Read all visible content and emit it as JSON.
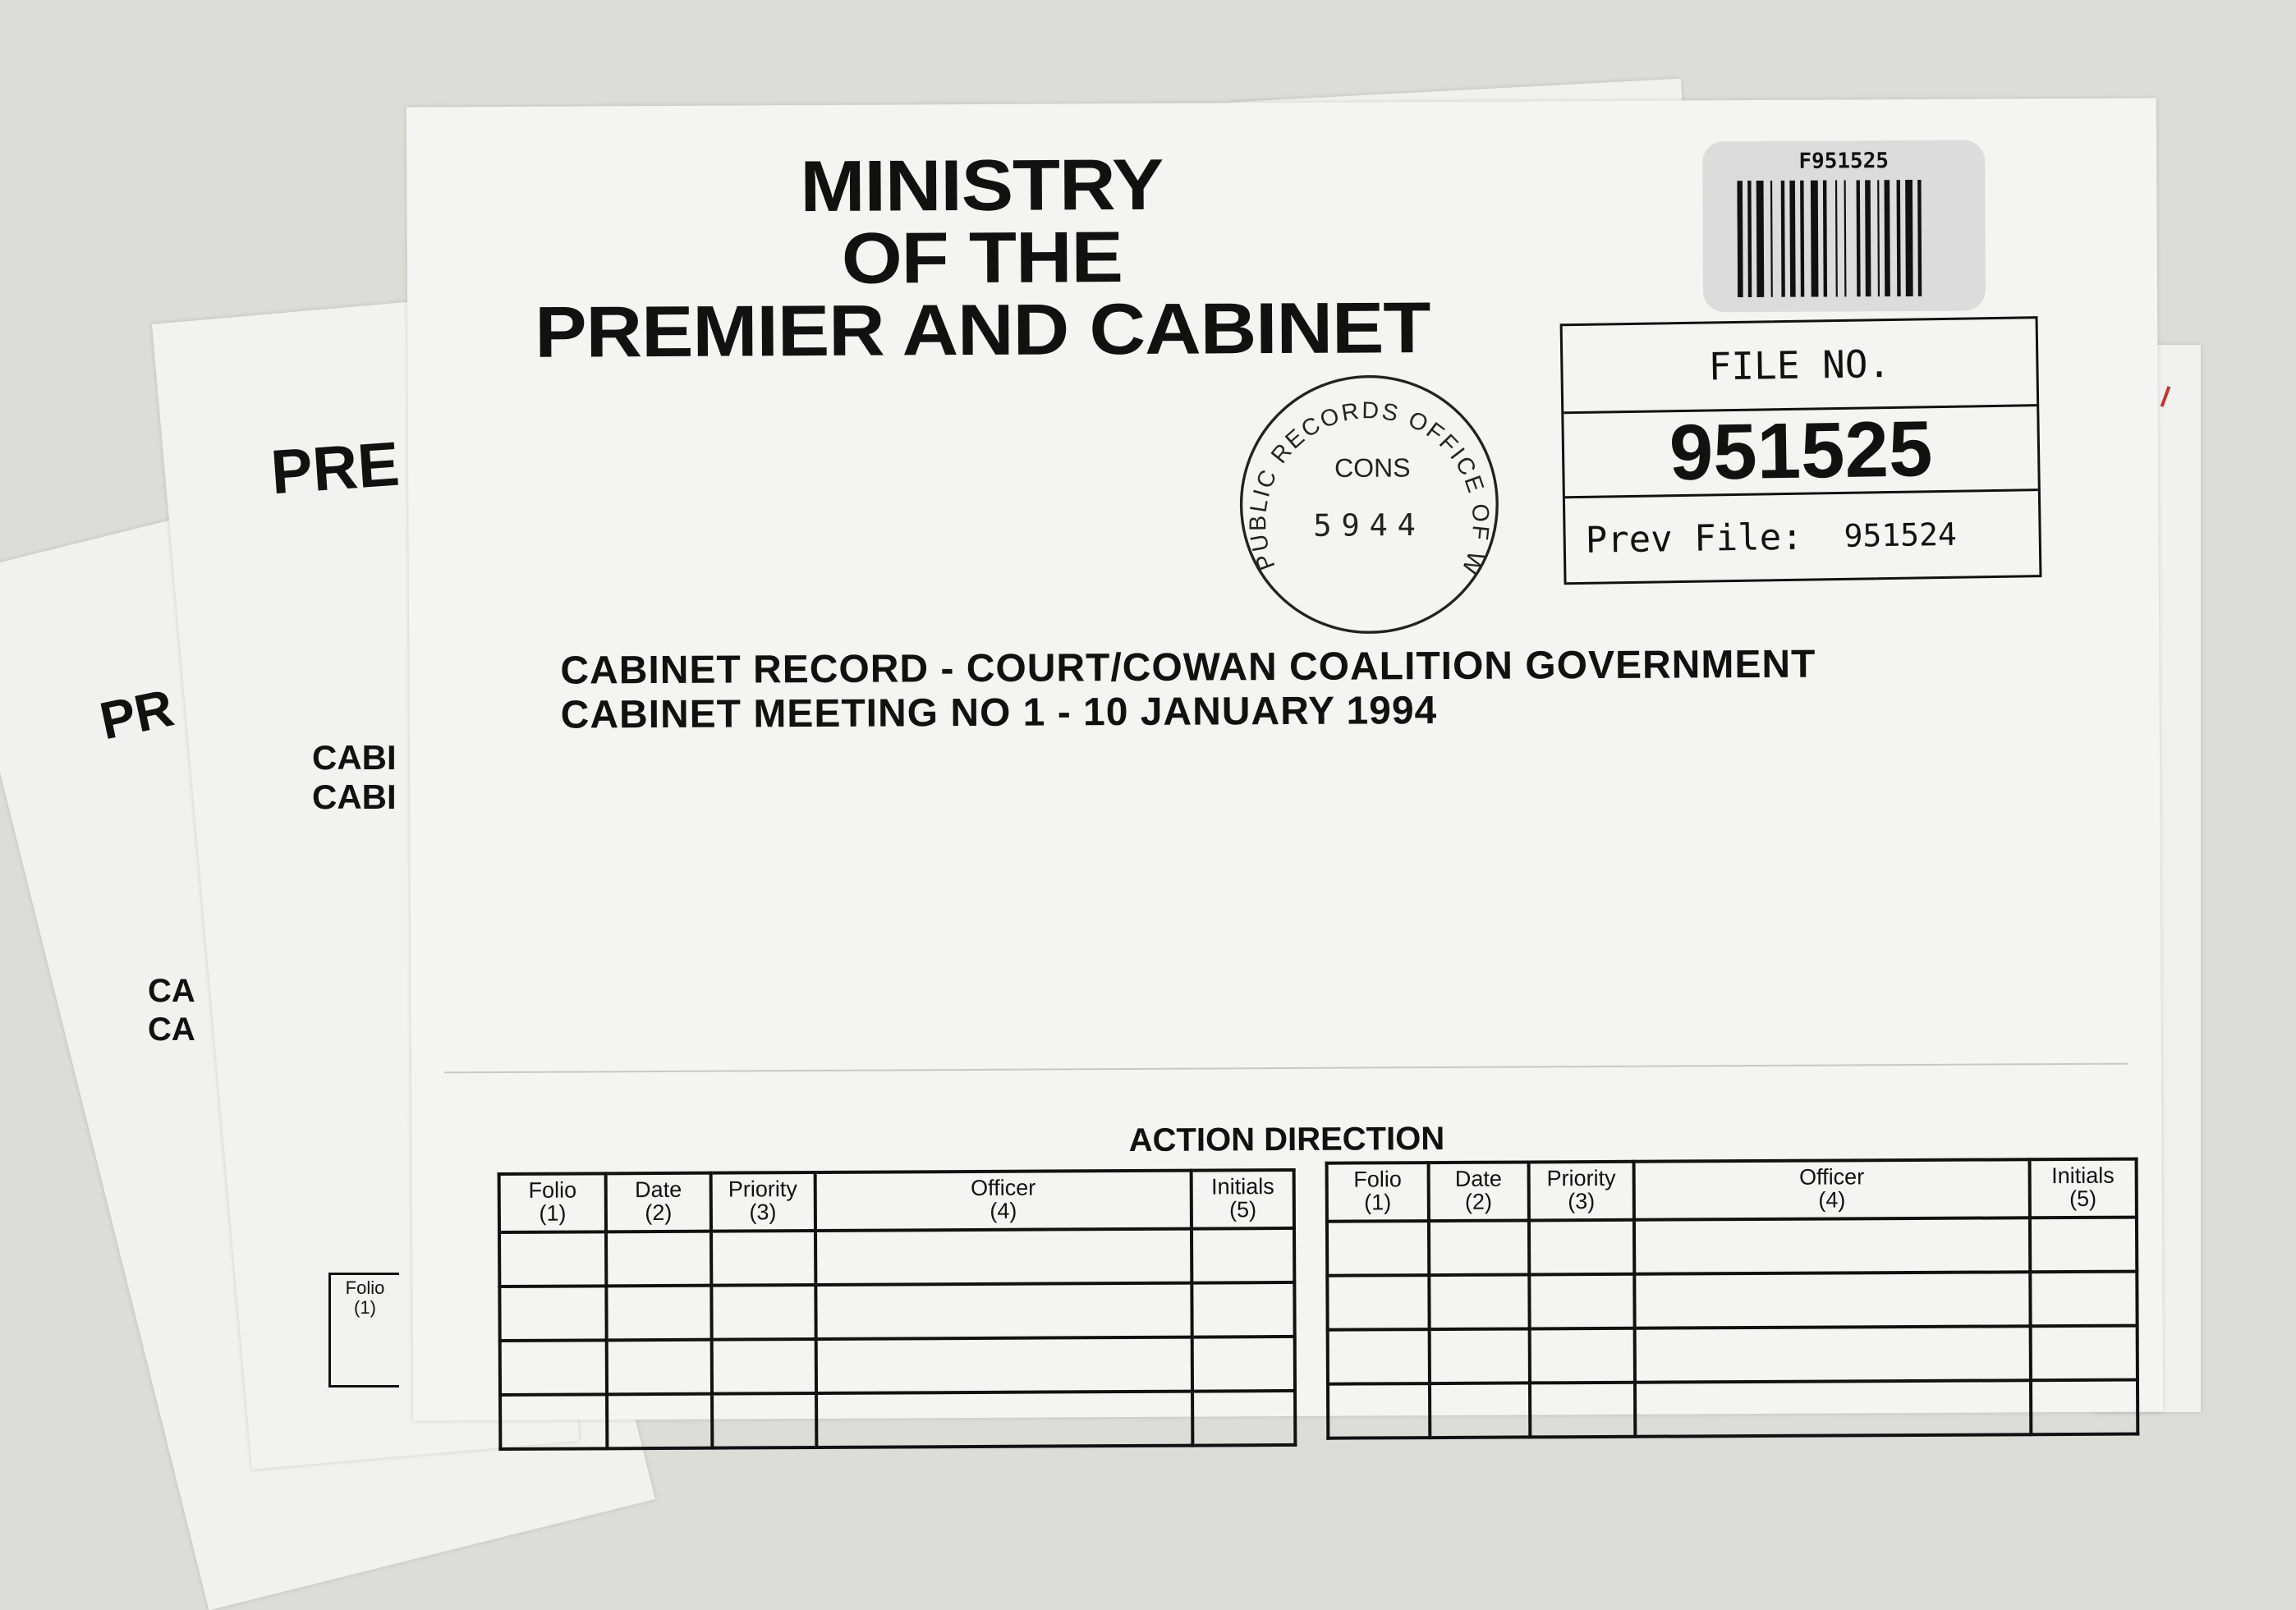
{
  "background_sheets": [
    {
      "heading": "PR",
      "lines": [
        "CA",
        "CA"
      ]
    },
    {
      "heading": "PRE",
      "lines": [
        "CABI",
        "CABI"
      ],
      "table_fragment": [
        "Folio",
        "(1)"
      ]
    }
  ],
  "cover": {
    "title_lines": [
      "MINISTRY",
      "OF THE",
      "PREMIER AND CABINET"
    ],
    "barcode_label": "F951525",
    "file_box": {
      "label": "FILE NO.",
      "number": "951525",
      "prev_label": "Prev File:",
      "prev_number": "951524"
    },
    "stamp": {
      "ring_text": "PUBLIC RECORDS OFFICE OF W.A.",
      "line1": "CONS",
      "line2": "5944"
    },
    "record_lines": [
      "CABINET RECORD - COURT/COWAN COALITION GOVERNMENT",
      "CABINET MEETING NO 1 - 10 JANUARY 1994"
    ],
    "action_direction": {
      "heading": "ACTION DIRECTION",
      "columns": [
        {
          "name": "Folio",
          "num": "(1)"
        },
        {
          "name": "Date",
          "num": "(2)"
        },
        {
          "name": "Priority",
          "num": "(3)"
        },
        {
          "name": "Officer",
          "num": "(4)"
        },
        {
          "name": "Initials",
          "num": "(5)"
        }
      ]
    }
  },
  "colors": {
    "background": "#dcdcd9",
    "paper": "#f4f4f2",
    "ink": "#111111",
    "edge_mark": "#c0392b"
  }
}
